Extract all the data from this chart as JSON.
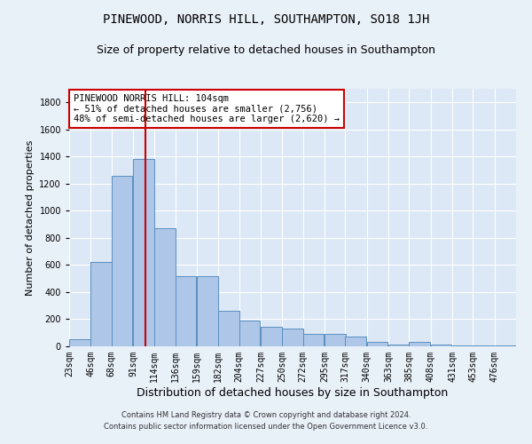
{
  "title": "PINEWOOD, NORRIS HILL, SOUTHAMPTON, SO18 1JH",
  "subtitle": "Size of property relative to detached houses in Southampton",
  "xlabel": "Distribution of detached houses by size in Southampton",
  "ylabel": "Number of detached properties",
  "footer_line1": "Contains HM Land Registry data © Crown copyright and database right 2024.",
  "footer_line2": "Contains public sector information licensed under the Open Government Licence v3.0.",
  "annotation_line1": "PINEWOOD NORRIS HILL: 104sqm",
  "annotation_line2": "← 51% of detached houses are smaller (2,756)",
  "annotation_line3": "48% of semi-detached houses are larger (2,620) →",
  "bar_color": "#aec6e8",
  "bar_edge_color": "#5a8fc0",
  "property_size": 104,
  "vline_color": "#cc0000",
  "categories": [
    "23sqm",
    "46sqm",
    "68sqm",
    "91sqm",
    "114sqm",
    "136sqm",
    "159sqm",
    "182sqm",
    "204sqm",
    "227sqm",
    "250sqm",
    "272sqm",
    "295sqm",
    "317sqm",
    "340sqm",
    "363sqm",
    "385sqm",
    "408sqm",
    "431sqm",
    "453sqm",
    "476sqm"
  ],
  "bin_starts": [
    23,
    46,
    68,
    91,
    114,
    136,
    159,
    182,
    204,
    227,
    250,
    272,
    295,
    317,
    340,
    363,
    385,
    408,
    431,
    453,
    476
  ],
  "bin_width": 23,
  "values": [
    50,
    620,
    1260,
    1380,
    870,
    520,
    520,
    265,
    190,
    145,
    130,
    95,
    95,
    75,
    30,
    10,
    35,
    10,
    5,
    5,
    5
  ],
  "ylim": [
    0,
    1900
  ],
  "yticks": [
    0,
    200,
    400,
    600,
    800,
    1000,
    1200,
    1400,
    1600,
    1800
  ],
  "xlim_left": 23,
  "xlim_right": 499,
  "background_color": "#e8f0f8",
  "plot_bg_color": "#dce8f5",
  "grid_color": "#ffffff",
  "title_fontsize": 10,
  "subtitle_fontsize": 9,
  "tick_fontsize": 7,
  "ylabel_fontsize": 8,
  "xlabel_fontsize": 9,
  "footer_fontsize": 6,
  "annotation_fontsize": 7.5,
  "annotation_box_color": "#ffffff",
  "annotation_box_edge": "#cc0000"
}
